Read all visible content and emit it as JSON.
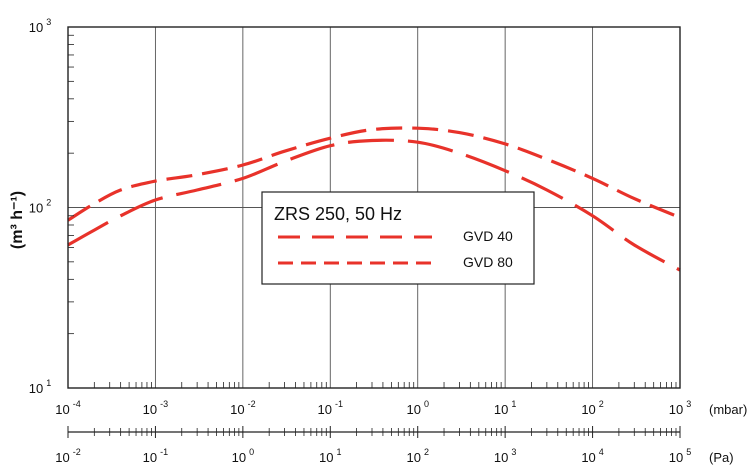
{
  "chart_data": {
    "type": "line",
    "title": "ZRS 250, 50 Hz",
    "ylabel": "(m³ h⁻¹)",
    "xlabel_primary": "(mbar)",
    "xlabel_secondary": "(Pa)",
    "x_scale": "log",
    "y_scale": "log",
    "xlim": [
      0.0001,
      1000
    ],
    "ylim": [
      10,
      1000
    ],
    "grid": true,
    "legend_position": "center",
    "y_ticks": [
      {
        "base": "10",
        "exp": "1"
      },
      {
        "base": "10",
        "exp": "2"
      },
      {
        "base": "10",
        "exp": "3"
      }
    ],
    "x_ticks_mbar": [
      {
        "base": "10",
        "exp": "-4"
      },
      {
        "base": "10",
        "exp": "-3"
      },
      {
        "base": "10",
        "exp": "-2"
      },
      {
        "base": "10",
        "exp": "-1"
      },
      {
        "base": "10",
        "exp": "0"
      },
      {
        "base": "10",
        "exp": "1"
      },
      {
        "base": "10",
        "exp": "2"
      },
      {
        "base": "10",
        "exp": "3"
      }
    ],
    "x_ticks_pa": [
      {
        "base": "10",
        "exp": "-2"
      },
      {
        "base": "10",
        "exp": "-1"
      },
      {
        "base": "10",
        "exp": "0"
      },
      {
        "base": "10",
        "exp": "1"
      },
      {
        "base": "10",
        "exp": "2"
      },
      {
        "base": "10",
        "exp": "3"
      },
      {
        "base": "10",
        "exp": "4"
      },
      {
        "base": "10",
        "exp": "5"
      }
    ],
    "series": [
      {
        "name": "GVD 40",
        "color": "#e8322a",
        "dash": "long",
        "x": [
          0.0001,
          0.0002,
          0.0004,
          0.001,
          0.003,
          0.01,
          0.03,
          0.1,
          0.3,
          1,
          3,
          10,
          30,
          100,
          300,
          1000
        ],
        "y": [
          62,
          75,
          90,
          110,
          125,
          145,
          180,
          220,
          235,
          230,
          200,
          160,
          125,
          90,
          62,
          45
        ]
      },
      {
        "name": "GVD 80",
        "color": "#e8322a",
        "dash": "medium",
        "x": [
          0.0001,
          0.0002,
          0.0004,
          0.001,
          0.003,
          0.01,
          0.03,
          0.1,
          0.3,
          1,
          3,
          10,
          30,
          100,
          300,
          1000
        ],
        "y": [
          85,
          105,
          125,
          140,
          152,
          172,
          205,
          242,
          270,
          275,
          260,
          225,
          185,
          145,
          112,
          88
        ]
      }
    ]
  }
}
